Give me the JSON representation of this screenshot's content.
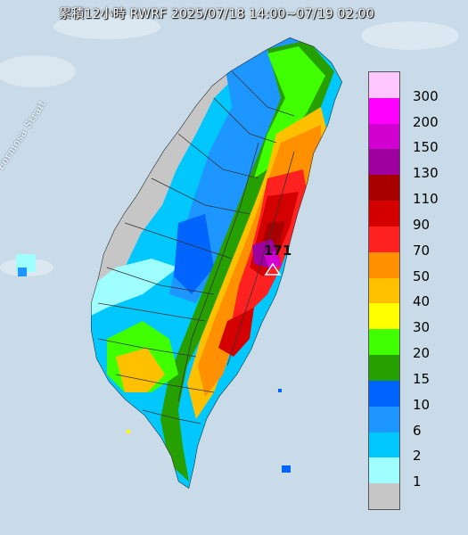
{
  "title": "累積12小時 RWRF 2025/07/18 14:00~07/19 02:00",
  "strait_label": "Formosa Strait",
  "peak_label": "171",
  "legend": {
    "labels": [
      "300",
      "200",
      "150",
      "130",
      "110",
      "90",
      "70",
      "50",
      "40",
      "30",
      "20",
      "15",
      "10",
      "6",
      "2",
      "1"
    ],
    "colors": [
      "#ffc6ff",
      "#ff00ff",
      "#d100d1",
      "#9e009e",
      "#a80000",
      "#d40000",
      "#ff2020",
      "#ff9100",
      "#ffc000",
      "#ffff00",
      "#40ff00",
      "#26a000",
      "#0064ff",
      "#1e96ff",
      "#00c8ff",
      "#9ffeff",
      "#c6c6c6"
    ]
  }
}
